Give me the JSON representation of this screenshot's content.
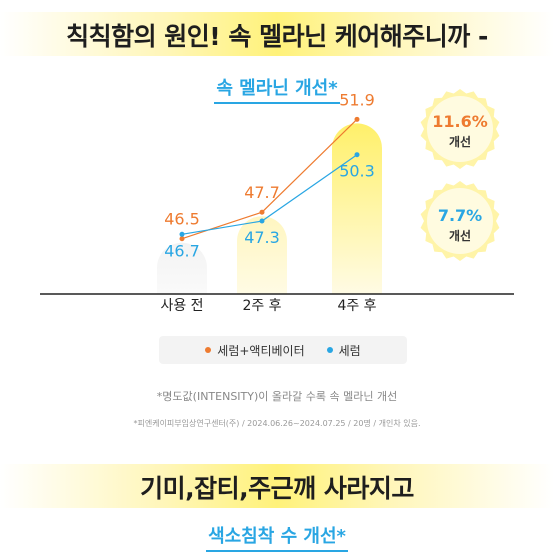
{
  "headline_top": "칙칙함의 원인! 속 멜라닌 케어해주니까 -",
  "chart_data": {
    "type": "bar+line",
    "title": "속 멜라닌 개선*",
    "categories": [
      "사용 전",
      "2주 후",
      "4주 후"
    ],
    "series": [
      {
        "name": "세럼+액티베이터",
        "color": "#ee7b30",
        "values": [
          46.5,
          47.7,
          51.9
        ]
      },
      {
        "name": "세럼",
        "color": "#29a6e3",
        "values": [
          46.7,
          47.3,
          50.3
        ]
      }
    ],
    "value_labels": {
      "orange": [
        "46.5",
        "47.7",
        "51.9"
      ],
      "blue": [
        "46.7",
        "47.3",
        "50.3"
      ]
    },
    "ylim": [
      44,
      53
    ],
    "bar_colors": [
      "#f3f3f3",
      "#fff6c0",
      "#fff06a"
    ]
  },
  "badges": [
    {
      "value": "11.6%",
      "label": "개선",
      "color": "#ee7b30"
    },
    {
      "value": "7.7%",
      "label": "개선",
      "color": "#29a6e3"
    }
  ],
  "notes": {
    "footnote": "*명도값(INTENSITY)이 올라갈 수록 속 멜라닌 개선",
    "source": "*피엔케이피부임상연구센터(주) / 2024.06.26~2024.07.25 / 20명 / 개인차 있음."
  },
  "headline_mid": "기미,잡티,주근깨 사라지고",
  "subtitle_bottom": "색소침착 수 개선*"
}
